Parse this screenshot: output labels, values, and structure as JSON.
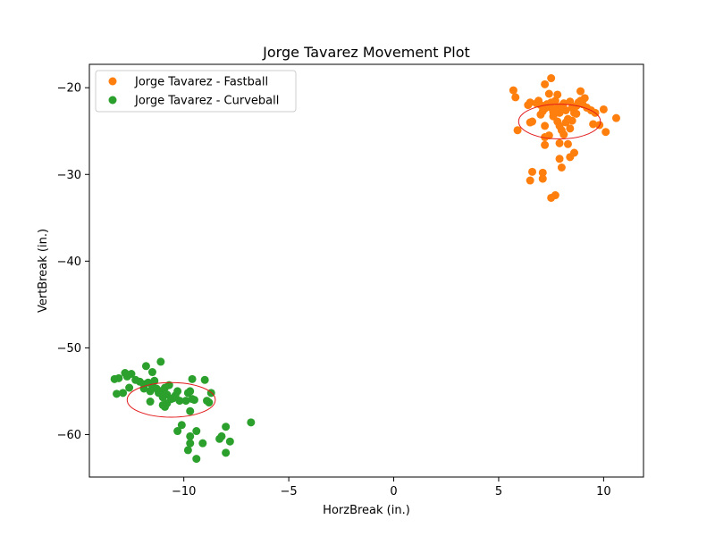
{
  "chart_data": {
    "type": "scatter",
    "title": "Jorge Tavarez Movement Plot",
    "xlabel": "HorzBreak (in.)",
    "ylabel": "VertBreak (in.)",
    "xlim": [
      -14.5,
      11.9
    ],
    "ylim": [
      -64.9,
      -17.3
    ],
    "xticks": [
      -10,
      -5,
      0,
      5,
      10
    ],
    "xtick_labels": [
      "−10",
      "−5",
      "0",
      "5",
      "10"
    ],
    "yticks": [
      -60,
      -50,
      -40,
      -30,
      -20
    ],
    "ytick_labels": [
      "−60",
      "−50",
      "−40",
      "−30",
      "−20"
    ],
    "grid": false,
    "legend_position": "top-left",
    "series": [
      {
        "name": "Jorge Tavarez - Fastball",
        "color": "#ff7f0e",
        "points": [
          [
            7.5,
            -18.9
          ],
          [
            7.2,
            -19.6
          ],
          [
            5.7,
            -20.3
          ],
          [
            5.8,
            -21.1
          ],
          [
            7.4,
            -20.7
          ],
          [
            7.8,
            -20.8
          ],
          [
            8.9,
            -20.4
          ],
          [
            9.1,
            -21.2
          ],
          [
            6.4,
            -22.0
          ],
          [
            6.5,
            -21.7
          ],
          [
            6.8,
            -21.8
          ],
          [
            6.9,
            -21.5
          ],
          [
            7.0,
            -22.0
          ],
          [
            7.1,
            -22.7
          ],
          [
            7.2,
            -22.4
          ],
          [
            7.3,
            -21.9
          ],
          [
            7.5,
            -21.7
          ],
          [
            7.5,
            -22.3
          ],
          [
            7.6,
            -22.8
          ],
          [
            7.7,
            -21.5
          ],
          [
            7.8,
            -22.3
          ],
          [
            7.9,
            -22.9
          ],
          [
            8.0,
            -22.1
          ],
          [
            8.1,
            -21.8
          ],
          [
            8.2,
            -22.6
          ],
          [
            8.4,
            -21.6
          ],
          [
            8.5,
            -22.3
          ],
          [
            8.6,
            -22.9
          ],
          [
            8.7,
            -22.1
          ],
          [
            8.8,
            -21.7
          ],
          [
            8.9,
            -21.5
          ],
          [
            9.0,
            -21.9
          ],
          [
            9.2,
            -22.3
          ],
          [
            9.4,
            -22.6
          ],
          [
            9.6,
            -22.9
          ],
          [
            10.0,
            -22.5
          ],
          [
            10.6,
            -23.5
          ],
          [
            6.6,
            -23.9
          ],
          [
            7.0,
            -23.1
          ],
          [
            7.2,
            -24.4
          ],
          [
            7.6,
            -23.3
          ],
          [
            7.8,
            -23.9
          ],
          [
            7.9,
            -24.4
          ],
          [
            8.0,
            -24.9
          ],
          [
            8.1,
            -25.4
          ],
          [
            8.2,
            -24.0
          ],
          [
            8.3,
            -23.6
          ],
          [
            8.4,
            -24.7
          ],
          [
            8.5,
            -23.8
          ],
          [
            9.5,
            -24.2
          ],
          [
            9.8,
            -24.3
          ],
          [
            10.1,
            -25.1
          ],
          [
            5.9,
            -24.9
          ],
          [
            7.2,
            -25.7
          ],
          [
            7.4,
            -25.5
          ],
          [
            7.9,
            -26.4
          ],
          [
            8.3,
            -26.5
          ],
          [
            7.2,
            -26.6
          ],
          [
            8.6,
            -27.5
          ],
          [
            8.4,
            -28.0
          ],
          [
            7.9,
            -28.2
          ],
          [
            8.0,
            -29.2
          ],
          [
            6.6,
            -29.7
          ],
          [
            7.1,
            -29.8
          ],
          [
            7.1,
            -30.5
          ],
          [
            6.5,
            -30.7
          ],
          [
            7.7,
            -32.4
          ],
          [
            7.5,
            -32.7
          ],
          [
            6.5,
            -24.0
          ],
          [
            8.7,
            -23.0
          ]
        ],
        "ellipse": {
          "cx": 7.9,
          "cy": -23.9,
          "rx": 1.95,
          "ry": 2.0
        }
      },
      {
        "name": "Jorge Tavarez - Curveball",
        "color": "#2ca02c",
        "points": [
          [
            -11.1,
            -51.6
          ],
          [
            -11.8,
            -52.1
          ],
          [
            -11.5,
            -52.8
          ],
          [
            -12.8,
            -52.9
          ],
          [
            -12.5,
            -53.0
          ],
          [
            -13.3,
            -53.6
          ],
          [
            -13.1,
            -53.5
          ],
          [
            -12.7,
            -53.3
          ],
          [
            -12.3,
            -53.7
          ],
          [
            -12.1,
            -53.9
          ],
          [
            -11.9,
            -54.2
          ],
          [
            -11.7,
            -54.0
          ],
          [
            -11.5,
            -54.4
          ],
          [
            -11.3,
            -54.7
          ],
          [
            -11.1,
            -55.0
          ],
          [
            -10.9,
            -54.6
          ],
          [
            -10.8,
            -55.4
          ],
          [
            -10.7,
            -54.3
          ],
          [
            -10.6,
            -55.9
          ],
          [
            -10.4,
            -55.5
          ],
          [
            -10.3,
            -55.0
          ],
          [
            -10.2,
            -56.1
          ],
          [
            -9.8,
            -55.2
          ],
          [
            -9.7,
            -55.0
          ],
          [
            -9.6,
            -55.9
          ],
          [
            -9.5,
            -56.0
          ],
          [
            -9.6,
            -53.6
          ],
          [
            -9.0,
            -53.7
          ],
          [
            -8.7,
            -55.2
          ],
          [
            -8.8,
            -56.3
          ],
          [
            -8.9,
            -56.1
          ],
          [
            -12.9,
            -55.2
          ],
          [
            -13.2,
            -55.3
          ],
          [
            -12.6,
            -54.6
          ],
          [
            -11.9,
            -54.7
          ],
          [
            -11.6,
            -55.0
          ],
          [
            -11.2,
            -55.2
          ],
          [
            -11.0,
            -55.7
          ],
          [
            -10.8,
            -56.4
          ],
          [
            -11.0,
            -56.6
          ],
          [
            -10.9,
            -56.8
          ],
          [
            -11.6,
            -56.2
          ],
          [
            -9.7,
            -57.3
          ],
          [
            -9.9,
            -56.1
          ],
          [
            -10.5,
            -55.8
          ],
          [
            -10.1,
            -58.9
          ],
          [
            -6.8,
            -58.6
          ],
          [
            -8.0,
            -59.1
          ],
          [
            -9.4,
            -59.6
          ],
          [
            -10.3,
            -59.6
          ],
          [
            -9.7,
            -60.2
          ],
          [
            -8.2,
            -60.2
          ],
          [
            -8.3,
            -60.5
          ],
          [
            -9.7,
            -61.0
          ],
          [
            -9.1,
            -61.0
          ],
          [
            -7.8,
            -60.8
          ],
          [
            -9.8,
            -61.8
          ],
          [
            -8.0,
            -62.1
          ],
          [
            -9.4,
            -62.8
          ],
          [
            -11.4,
            -53.8
          ]
        ],
        "ellipse": {
          "cx": -10.6,
          "cy": -56.0,
          "rx": 2.1,
          "ry": 2.0
        }
      }
    ]
  }
}
